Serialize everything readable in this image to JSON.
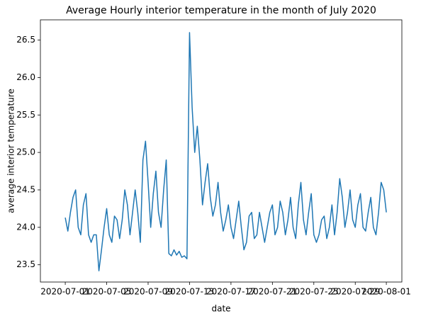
{
  "chart_data": {
    "type": "line",
    "title": "Average Hourly interior temperature in the month of July 2020",
    "xlabel": "date",
    "ylabel": "average interior temperature",
    "color": "#1f77b4",
    "x": [
      0,
      0.25,
      0.5,
      0.75,
      1,
      1.25,
      1.5,
      1.75,
      2,
      2.25,
      2.5,
      2.75,
      3,
      3.25,
      3.5,
      3.75,
      4,
      4.25,
      4.5,
      4.75,
      5,
      5.25,
      5.5,
      5.75,
      6,
      6.25,
      6.5,
      6.75,
      7,
      7.25,
      7.5,
      7.75,
      8,
      8.25,
      8.5,
      8.75,
      9,
      9.25,
      9.5,
      9.75,
      10,
      10.25,
      10.5,
      10.75,
      11,
      11.25,
      11.5,
      11.75,
      12,
      12.25,
      12.5,
      12.75,
      13,
      13.25,
      13.5,
      13.75,
      14,
      14.25,
      14.5,
      14.75,
      15,
      15.25,
      15.5,
      15.75,
      16,
      16.25,
      16.5,
      16.75,
      17,
      17.25,
      17.5,
      17.75,
      18,
      18.25,
      18.5,
      18.75,
      19,
      19.25,
      19.5,
      19.75,
      20,
      20.25,
      20.5,
      20.75,
      21,
      21.25,
      21.5,
      21.75,
      22,
      22.25,
      22.5,
      22.75,
      23,
      23.25,
      23.5,
      23.75,
      24,
      24.25,
      24.5,
      24.75,
      25,
      25.25,
      25.5,
      25.75,
      26,
      26.25,
      26.5,
      26.75,
      27,
      27.25,
      27.5,
      27.75,
      28,
      28.25,
      28.5,
      28.75,
      29,
      29.25,
      29.5,
      29.75,
      30,
      30.25,
      30.5,
      30.75,
      31
    ],
    "values": [
      24.13,
      23.95,
      24.2,
      24.4,
      24.5,
      24.0,
      23.9,
      24.3,
      24.45,
      23.9,
      23.8,
      23.9,
      23.9,
      23.42,
      23.7,
      24.0,
      24.25,
      23.9,
      23.8,
      24.15,
      24.1,
      23.85,
      24.1,
      24.5,
      24.3,
      23.9,
      24.2,
      24.5,
      24.2,
      23.8,
      24.9,
      25.15,
      24.6,
      24.0,
      24.45,
      24.75,
      24.2,
      24.0,
      24.5,
      24.9,
      23.65,
      23.62,
      23.7,
      23.63,
      23.68,
      23.6,
      23.62,
      23.58,
      26.6,
      25.6,
      25.0,
      25.35,
      24.9,
      24.3,
      24.6,
      24.85,
      24.4,
      24.15,
      24.3,
      24.6,
      24.2,
      23.95,
      24.1,
      24.3,
      24.0,
      23.85,
      24.1,
      24.35,
      24.0,
      23.7,
      23.8,
      24.15,
      24.2,
      23.85,
      23.9,
      24.2,
      24.0,
      23.8,
      24.0,
      24.2,
      24.3,
      23.9,
      24.0,
      24.35,
      24.2,
      23.9,
      24.1,
      24.4,
      24.0,
      23.85,
      24.3,
      24.6,
      24.1,
      23.9,
      24.2,
      24.45,
      23.9,
      23.8,
      23.9,
      24.1,
      24.15,
      23.85,
      24.0,
      24.3,
      23.9,
      24.2,
      24.65,
      24.4,
      24.0,
      24.2,
      24.5,
      24.1,
      24.0,
      24.3,
      24.45,
      24.0,
      23.95,
      24.2,
      24.4,
      24.0,
      23.9,
      24.2,
      24.6,
      24.5,
      24.2
    ],
    "xlim": [
      -2.4,
      32.5
    ],
    "xticks": [
      {
        "value": 0,
        "label": "2020-07-01"
      },
      {
        "value": 4,
        "label": "2020-07-05"
      },
      {
        "value": 8,
        "label": "2020-07-09"
      },
      {
        "value": 12,
        "label": "2020-07-13"
      },
      {
        "value": 16,
        "label": "2020-07-17"
      },
      {
        "value": 20,
        "label": "2020-07-21"
      },
      {
        "value": 24,
        "label": "2020-07-25"
      },
      {
        "value": 28,
        "label": "2020-07-29"
      },
      {
        "value": 31,
        "label": "2020-08-01"
      }
    ],
    "ylim": [
      23.27,
      26.77
    ],
    "yticks": [
      23.5,
      {
        "value": 24,
        "label": "24.0"
      },
      24.5,
      {
        "value": 25,
        "label": "25.0"
      },
      25.5,
      {
        "value": 26,
        "label": "26.0"
      },
      26.5
    ],
    "grid": false
  }
}
